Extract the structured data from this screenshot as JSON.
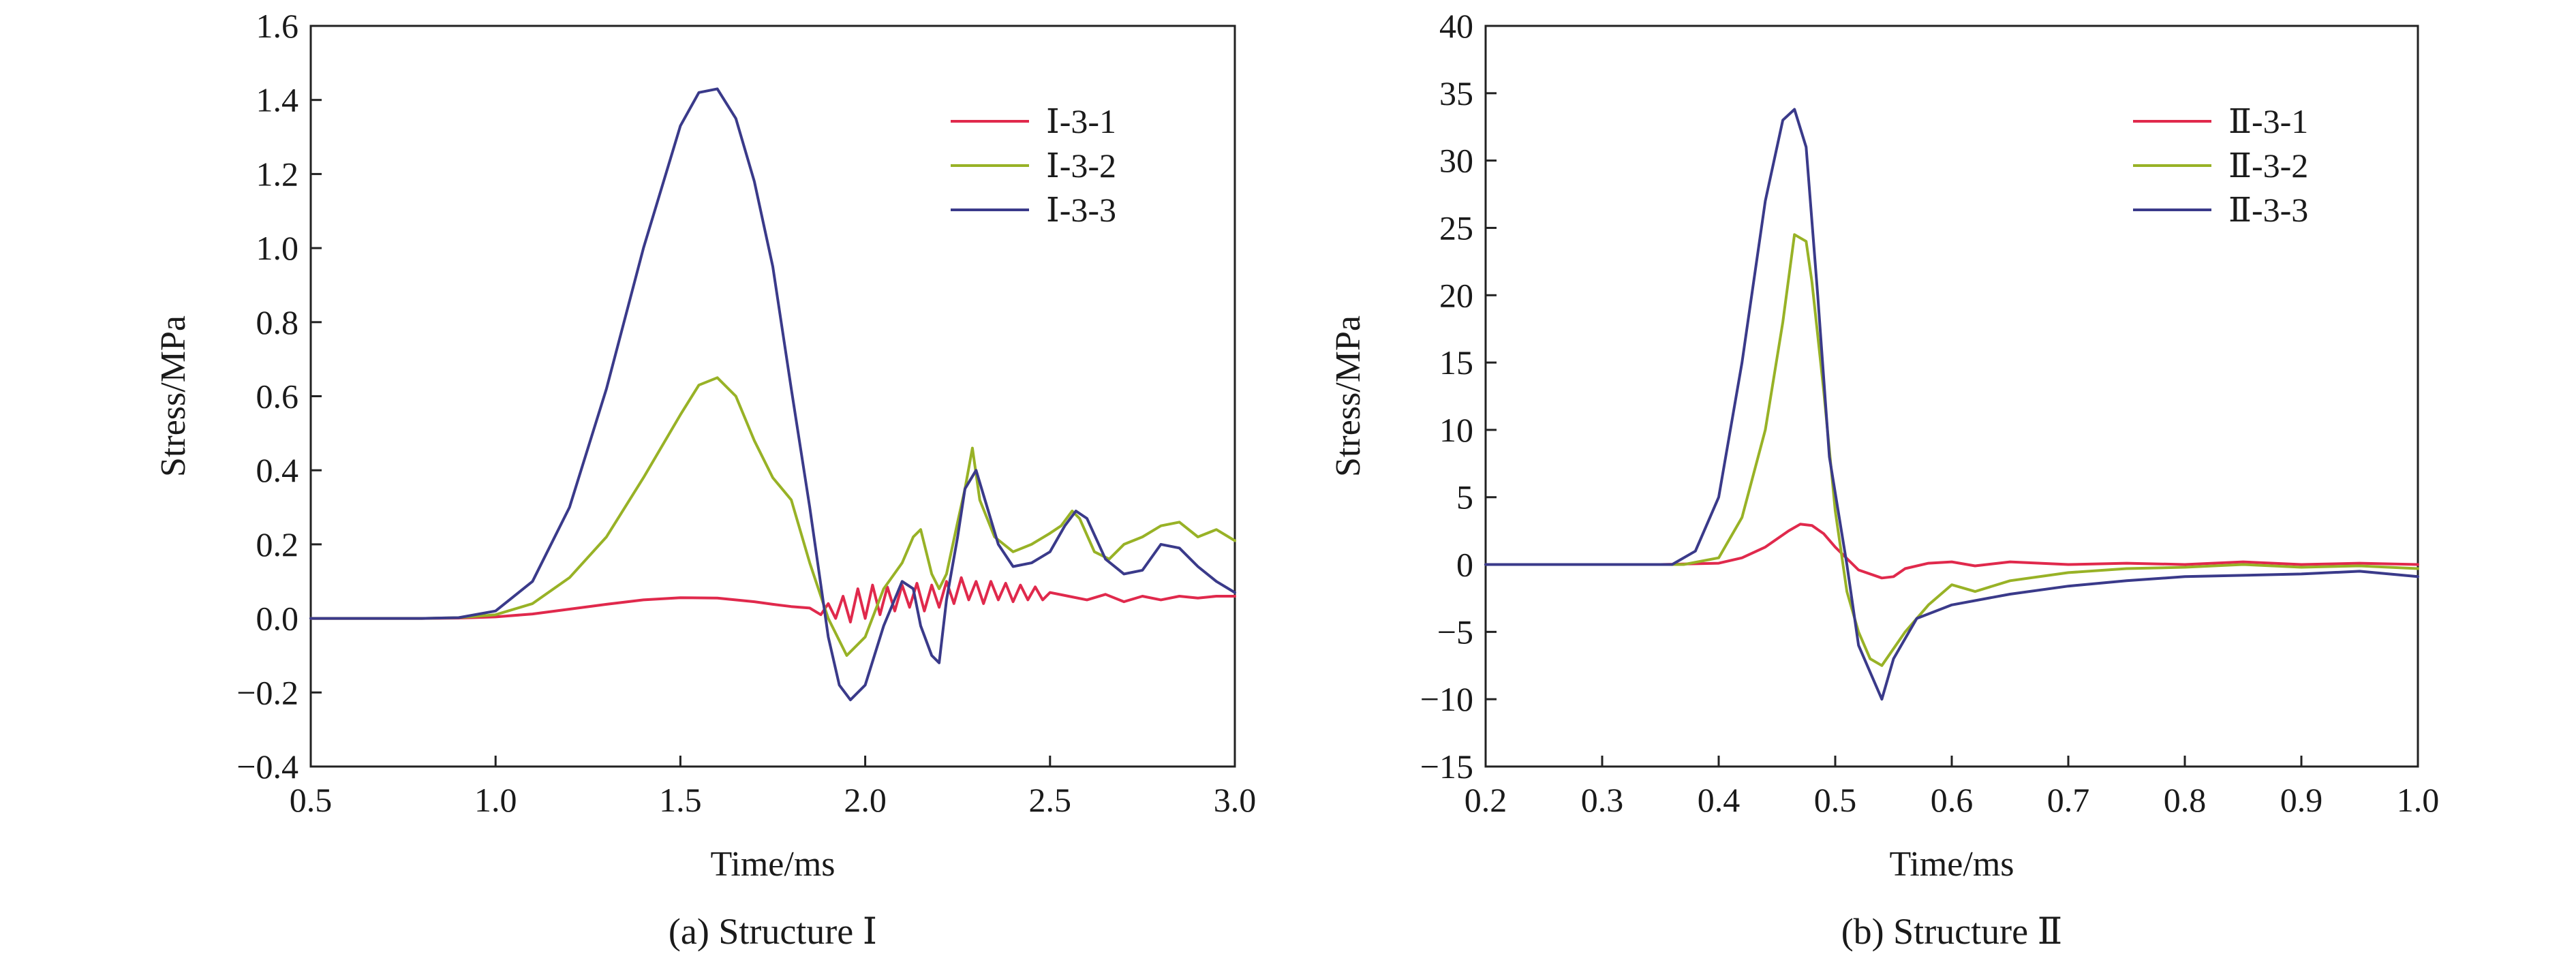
{
  "chart_data": [
    {
      "type": "line",
      "caption": "(a) Structure Ⅰ",
      "xlabel": "Time/ms",
      "ylabel": "Stress/MPa",
      "xlim": [
        0.5,
        3.0
      ],
      "ylim": [
        -0.4,
        1.6
      ],
      "xticks": [
        "0.5",
        "1.0",
        "1.5",
        "2.0",
        "2.5",
        "3.0"
      ],
      "yticks": [
        "−0.4",
        "−0.2",
        "0.0",
        "0.2",
        "0.4",
        "0.6",
        "0.8",
        "1.0",
        "1.2",
        "1.4",
        "1.6"
      ],
      "legend_position": "top-right",
      "series": [
        {
          "name": "Ⅰ-3-1",
          "color": "#e0294c",
          "x": [
            0.5,
            0.8,
            0.9,
            1.0,
            1.1,
            1.2,
            1.3,
            1.4,
            1.5,
            1.6,
            1.7,
            1.75,
            1.8,
            1.85,
            1.88,
            1.9,
            1.92,
            1.94,
            1.96,
            1.98,
            2.0,
            2.02,
            2.04,
            2.06,
            2.08,
            2.1,
            2.12,
            2.14,
            2.16,
            2.18,
            2.2,
            2.22,
            2.24,
            2.26,
            2.28,
            2.3,
            2.32,
            2.34,
            2.36,
            2.38,
            2.4,
            2.42,
            2.44,
            2.46,
            2.48,
            2.5,
            2.55,
            2.6,
            2.65,
            2.7,
            2.75,
            2.8,
            2.85,
            2.9,
            2.95,
            3.0
          ],
          "y": [
            0.0,
            0.0,
            0.001,
            0.004,
            0.012,
            0.025,
            0.038,
            0.05,
            0.056,
            0.055,
            0.045,
            0.038,
            0.032,
            0.028,
            0.01,
            0.04,
            0.0,
            0.06,
            -0.01,
            0.08,
            0.0,
            0.09,
            0.01,
            0.085,
            0.02,
            0.09,
            0.03,
            0.095,
            0.02,
            0.09,
            0.03,
            0.1,
            0.04,
            0.11,
            0.05,
            0.1,
            0.04,
            0.1,
            0.05,
            0.095,
            0.045,
            0.09,
            0.05,
            0.085,
            0.05,
            0.07,
            0.06,
            0.05,
            0.065,
            0.045,
            0.06,
            0.05,
            0.06,
            0.055,
            0.06,
            0.06
          ]
        },
        {
          "name": "Ⅰ-3-2",
          "color": "#98b226",
          "x": [
            0.5,
            0.8,
            0.9,
            1.0,
            1.1,
            1.2,
            1.3,
            1.4,
            1.5,
            1.55,
            1.6,
            1.65,
            1.7,
            1.75,
            1.8,
            1.85,
            1.9,
            1.95,
            2.0,
            2.05,
            2.1,
            2.13,
            2.15,
            2.18,
            2.2,
            2.22,
            2.25,
            2.27,
            2.29,
            2.31,
            2.35,
            2.4,
            2.45,
            2.5,
            2.53,
            2.56,
            2.58,
            2.62,
            2.66,
            2.7,
            2.75,
            2.8,
            2.85,
            2.9,
            2.95,
            3.0
          ],
          "y": [
            0.0,
            0.0,
            0.002,
            0.01,
            0.04,
            0.11,
            0.22,
            0.38,
            0.55,
            0.63,
            0.65,
            0.6,
            0.48,
            0.38,
            0.32,
            0.15,
            0.0,
            -0.1,
            -0.05,
            0.08,
            0.15,
            0.22,
            0.24,
            0.12,
            0.08,
            0.12,
            0.26,
            0.35,
            0.46,
            0.32,
            0.22,
            0.18,
            0.2,
            0.23,
            0.25,
            0.29,
            0.27,
            0.18,
            0.16,
            0.2,
            0.22,
            0.25,
            0.26,
            0.22,
            0.24,
            0.21
          ]
        },
        {
          "name": "Ⅰ-3-3",
          "color": "#3a3a8a",
          "x": [
            0.5,
            0.8,
            0.9,
            1.0,
            1.1,
            1.2,
            1.3,
            1.4,
            1.5,
            1.55,
            1.6,
            1.65,
            1.7,
            1.75,
            1.8,
            1.85,
            1.9,
            1.93,
            1.96,
            2.0,
            2.05,
            2.1,
            2.13,
            2.15,
            2.18,
            2.2,
            2.22,
            2.25,
            2.27,
            2.3,
            2.33,
            2.36,
            2.4,
            2.45,
            2.5,
            2.54,
            2.57,
            2.6,
            2.65,
            2.7,
            2.75,
            2.8,
            2.85,
            2.9,
            2.95,
            3.0
          ],
          "y": [
            0.0,
            0.0,
            0.002,
            0.02,
            0.1,
            0.3,
            0.62,
            1.0,
            1.33,
            1.42,
            1.43,
            1.35,
            1.18,
            0.95,
            0.62,
            0.3,
            -0.05,
            -0.18,
            -0.22,
            -0.18,
            -0.02,
            0.1,
            0.08,
            -0.02,
            -0.1,
            -0.12,
            0.05,
            0.22,
            0.35,
            0.4,
            0.3,
            0.2,
            0.14,
            0.15,
            0.18,
            0.25,
            0.29,
            0.27,
            0.16,
            0.12,
            0.13,
            0.2,
            0.19,
            0.14,
            0.1,
            0.07
          ]
        }
      ]
    },
    {
      "type": "line",
      "caption": "(b) Structure Ⅱ",
      "xlabel": "Time/ms",
      "ylabel": "Stress/MPa",
      "xlim": [
        0.2,
        1.0
      ],
      "ylim": [
        -15,
        40
      ],
      "xticks": [
        "0.2",
        "0.3",
        "0.4",
        "0.5",
        "0.6",
        "0.7",
        "0.8",
        "0.9",
        "1.0"
      ],
      "yticks": [
        "−15",
        "−10",
        "−5",
        "0",
        "5",
        "10",
        "15",
        "20",
        "25",
        "30",
        "35",
        "40"
      ],
      "legend_position": "top-right",
      "series": [
        {
          "name": "Ⅱ-3-1",
          "color": "#e0294c",
          "x": [
            0.2,
            0.35,
            0.4,
            0.42,
            0.44,
            0.46,
            0.47,
            0.48,
            0.49,
            0.5,
            0.52,
            0.54,
            0.55,
            0.56,
            0.58,
            0.6,
            0.62,
            0.65,
            0.7,
            0.75,
            0.8,
            0.85,
            0.9,
            0.95,
            1.0
          ],
          "y": [
            0,
            0,
            0.1,
            0.5,
            1.3,
            2.5,
            3.0,
            2.9,
            2.3,
            1.3,
            -0.4,
            -1.0,
            -0.9,
            -0.3,
            0.1,
            0.2,
            -0.1,
            0.2,
            0.0,
            0.1,
            0.0,
            0.2,
            0.0,
            0.1,
            0.0
          ]
        },
        {
          "name": "Ⅱ-3-2",
          "color": "#98b226",
          "x": [
            0.2,
            0.37,
            0.4,
            0.42,
            0.44,
            0.455,
            0.465,
            0.475,
            0.48,
            0.49,
            0.5,
            0.51,
            0.52,
            0.53,
            0.54,
            0.56,
            0.58,
            0.6,
            0.62,
            0.65,
            0.7,
            0.75,
            0.8,
            0.85,
            0.9,
            0.95,
            1.0
          ],
          "y": [
            0,
            0,
            0.5,
            3.5,
            10,
            18,
            24.5,
            24,
            21,
            13,
            4,
            -2,
            -5,
            -7,
            -7.5,
            -5,
            -3,
            -1.5,
            -2,
            -1.2,
            -0.6,
            -0.3,
            -0.2,
            0.0,
            -0.2,
            -0.1,
            -0.3
          ]
        },
        {
          "name": "Ⅱ-3-3",
          "color": "#3a3a8a",
          "x": [
            0.2,
            0.36,
            0.38,
            0.4,
            0.42,
            0.44,
            0.455,
            0.465,
            0.475,
            0.485,
            0.495,
            0.51,
            0.52,
            0.53,
            0.54,
            0.55,
            0.57,
            0.6,
            0.65,
            0.7,
            0.75,
            0.8,
            0.85,
            0.9,
            0.95,
            1.0
          ],
          "y": [
            0,
            0,
            1,
            5,
            15,
            27,
            33,
            33.8,
            31,
            20,
            8,
            0,
            -6,
            -8,
            -10,
            -7,
            -4,
            -3,
            -2.2,
            -1.6,
            -1.2,
            -0.9,
            -0.8,
            -0.7,
            -0.5,
            -0.9
          ]
        }
      ]
    }
  ]
}
